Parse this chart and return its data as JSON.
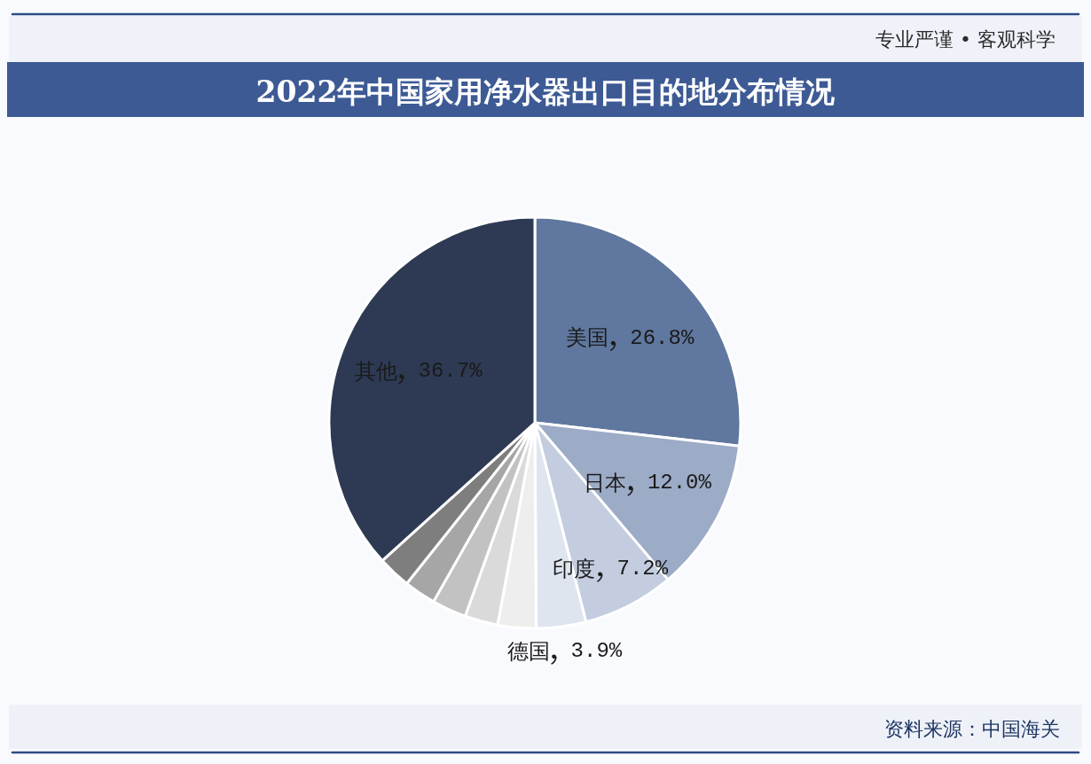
{
  "chart_data": {
    "type": "pie",
    "title": "2022年中国家用净水器出口目的地分布情况",
    "categories": [
      "美国",
      "日本",
      "印度",
      "德国",
      null,
      null,
      null,
      null,
      null,
      "其他"
    ],
    "values": [
      26.8,
      12.0,
      7.2,
      3.9,
      3.0,
      2.6,
      2.7,
      2.5,
      2.6,
      36.7
    ],
    "colors": [
      "#60789f",
      "#9cabc6",
      "#c3cddf",
      "#dfe5ef",
      "#eeeeee",
      "#dadada",
      "#c2c2c2",
      "#a6a6a6",
      "#7e7e7e",
      "#2e3a54"
    ],
    "value_labels": [
      "26.8%",
      "12.0%",
      "7.2%",
      "3.9%",
      null,
      null,
      null,
      null,
      null,
      "36.7%"
    ],
    "annotations": [
      "专业严谨 • 客观科学",
      "资料来源：中国海关"
    ]
  }
}
